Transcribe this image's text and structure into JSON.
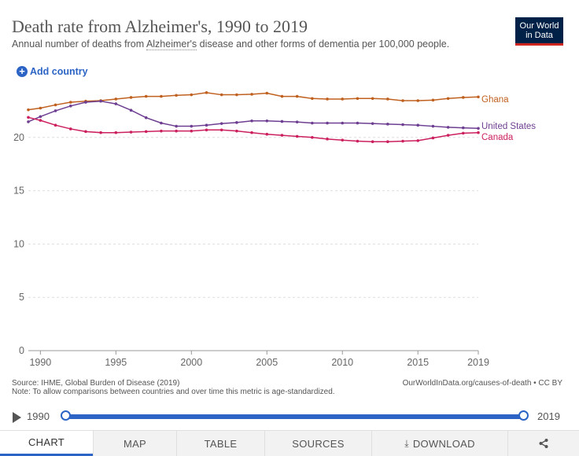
{
  "header": {
    "title": "Death rate from Alzheimer's, 1990 to 2019",
    "subtitle_before": "Annual number of deaths from ",
    "subtitle_term": "Alzheimer's",
    "subtitle_after": " disease and other forms of dementia per 100,000 people.",
    "logo_line1": "Our World",
    "logo_line2": "in Data",
    "add_country": "Add country",
    "add_icon": "plus-circle-icon"
  },
  "chart_data": {
    "type": "line",
    "title": "Death rate from Alzheimer's, 1990 to 2019",
    "ylim": [
      0,
      25
    ],
    "xlim": [
      1989.2,
      2019
    ],
    "yticks": [
      0,
      5,
      10,
      15,
      20
    ],
    "xticks": [
      1990,
      1995,
      2000,
      2005,
      2010,
      2015,
      2019
    ],
    "grid": "horizontal dashed",
    "legend": "inline right end labels",
    "x": [
      1989,
      1990,
      1991,
      1992,
      1993,
      1994,
      1995,
      1996,
      1997,
      1998,
      1999,
      2000,
      2001,
      2002,
      2003,
      2004,
      2005,
      2006,
      2007,
      2008,
      2009,
      2010,
      2011,
      2012,
      2013,
      2014,
      2015,
      2016,
      2017,
      2018,
      2019
    ],
    "series": [
      {
        "name": "Ghana",
        "color": "#c0601f",
        "values": [
          22.55,
          22.75,
          23.05,
          23.3,
          23.4,
          23.45,
          23.6,
          23.75,
          23.85,
          23.85,
          23.95,
          24.0,
          24.2,
          24.0,
          24.0,
          24.05,
          24.15,
          23.85,
          23.85,
          23.65,
          23.6,
          23.6,
          23.65,
          23.65,
          23.6,
          23.45,
          23.45,
          23.5,
          23.65,
          23.75,
          23.8
        ]
      },
      {
        "name": "United States",
        "color": "#6d3e91",
        "values": [
          21.35,
          21.95,
          22.5,
          22.95,
          23.3,
          23.4,
          23.15,
          22.55,
          21.85,
          21.35,
          21.05,
          21.05,
          21.15,
          21.3,
          21.4,
          21.55,
          21.55,
          21.5,
          21.45,
          21.35,
          21.35,
          21.35,
          21.35,
          21.3,
          21.25,
          21.2,
          21.15,
          21.05,
          20.95,
          20.9,
          20.85
        ]
      },
      {
        "name": "Canada",
        "color": "#cc1f5e",
        "values": [
          21.95,
          21.6,
          21.15,
          20.8,
          20.55,
          20.45,
          20.45,
          20.5,
          20.55,
          20.6,
          20.6,
          20.6,
          20.7,
          20.7,
          20.6,
          20.45,
          20.3,
          20.2,
          20.1,
          20.0,
          19.85,
          19.75,
          19.65,
          19.6,
          19.6,
          19.65,
          19.7,
          19.95,
          20.2,
          20.4,
          20.45
        ]
      }
    ]
  },
  "footer": {
    "source": "Source: IHME, Global Burden of Disease (2019)",
    "note": "Note: To allow comparisons between countries and over time this metric is age-standardized.",
    "url": "OurWorldInData.org/causes-of-death • CC BY"
  },
  "timeline": {
    "start": "1990",
    "end": "2019",
    "play_icon": "play-icon"
  },
  "tabs": [
    {
      "label": "CHART",
      "active": true
    },
    {
      "label": "MAP"
    },
    {
      "label": "TABLE"
    },
    {
      "label": "SOURCES"
    },
    {
      "label": "DOWNLOAD",
      "icon": "download-icon"
    },
    {
      "label": "",
      "icon": "share-icon"
    }
  ]
}
